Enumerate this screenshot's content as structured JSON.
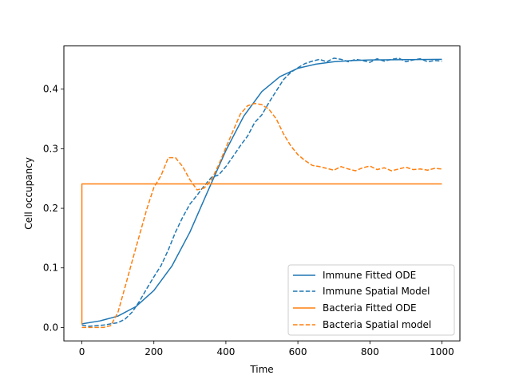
{
  "chart_data": {
    "type": "line",
    "xlabel": "Time",
    "ylabel": "Cell occupancy",
    "xlim": [
      -50,
      1050
    ],
    "ylim": [
      -0.0225,
      0.4725
    ],
    "xticks": [
      0,
      200,
      400,
      600,
      800,
      1000
    ],
    "yticks": [
      0.0,
      0.1,
      0.2,
      0.3,
      0.4
    ],
    "xtick_labels": [
      "0",
      "200",
      "400",
      "600",
      "800",
      "1000"
    ],
    "ytick_labels": [
      "0.0",
      "0.1",
      "0.2",
      "0.3",
      "0.4"
    ],
    "grid": false,
    "legend_position": "lower-right",
    "series": [
      {
        "name": "Immune Fitted ODE",
        "color": "#1f77b4",
        "style": "solid",
        "x": [
          0,
          50,
          100,
          150,
          200,
          250,
          300,
          350,
          400,
          450,
          500,
          550,
          600,
          650,
          700,
          750,
          800,
          900,
          1000
        ],
        "y": [
          0.006,
          0.011,
          0.019,
          0.035,
          0.062,
          0.103,
          0.16,
          0.229,
          0.297,
          0.355,
          0.396,
          0.421,
          0.435,
          0.442,
          0.446,
          0.448,
          0.449,
          0.4495,
          0.45
        ]
      },
      {
        "name": "Immune Spatial Model",
        "color": "#1f77b4",
        "style": "dashed",
        "x": [
          0,
          20,
          40,
          60,
          80,
          100,
          120,
          140,
          160,
          180,
          200,
          220,
          240,
          260,
          280,
          300,
          320,
          340,
          360,
          380,
          400,
          420,
          440,
          460,
          480,
          500,
          520,
          540,
          560,
          580,
          600,
          620,
          640,
          660,
          680,
          700,
          720,
          740,
          760,
          780,
          800,
          820,
          840,
          860,
          880,
          900,
          920,
          940,
          960,
          980,
          1000
        ],
        "y": [
          0.004,
          0.002,
          0.003,
          0.004,
          0.006,
          0.008,
          0.014,
          0.026,
          0.044,
          0.065,
          0.085,
          0.104,
          0.13,
          0.16,
          0.185,
          0.207,
          0.222,
          0.238,
          0.252,
          0.256,
          0.27,
          0.287,
          0.305,
          0.321,
          0.344,
          0.357,
          0.378,
          0.397,
          0.416,
          0.428,
          0.436,
          0.443,
          0.447,
          0.45,
          0.446,
          0.452,
          0.45,
          0.446,
          0.45,
          0.448,
          0.445,
          0.451,
          0.447,
          0.45,
          0.452,
          0.446,
          0.449,
          0.451,
          0.446,
          0.448,
          0.447
        ]
      },
      {
        "name": "Bacteria Fitted ODE",
        "color": "#ff7f0e",
        "style": "solid",
        "x": [
          0,
          0,
          1000
        ],
        "y": [
          0.005,
          0.241,
          0.241
        ]
      },
      {
        "name": "Bacteria Spatial model",
        "color": "#ff7f0e",
        "style": "dashed",
        "x": [
          0,
          20,
          40,
          60,
          80,
          100,
          120,
          140,
          160,
          180,
          200,
          220,
          240,
          260,
          280,
          300,
          320,
          340,
          360,
          380,
          400,
          420,
          440,
          460,
          480,
          500,
          520,
          540,
          560,
          580,
          600,
          620,
          640,
          660,
          680,
          700,
          720,
          740,
          760,
          780,
          800,
          820,
          840,
          860,
          880,
          900,
          920,
          940,
          960,
          980,
          1000
        ],
        "y": [
          0.0,
          0.0,
          0.0,
          0.0,
          0.003,
          0.025,
          0.068,
          0.112,
          0.155,
          0.198,
          0.235,
          0.255,
          0.285,
          0.285,
          0.27,
          0.248,
          0.231,
          0.234,
          0.248,
          0.273,
          0.302,
          0.33,
          0.358,
          0.372,
          0.376,
          0.374,
          0.366,
          0.35,
          0.325,
          0.305,
          0.29,
          0.28,
          0.272,
          0.27,
          0.267,
          0.264,
          0.27,
          0.266,
          0.263,
          0.268,
          0.271,
          0.265,
          0.268,
          0.263,
          0.266,
          0.269,
          0.265,
          0.266,
          0.264,
          0.267,
          0.266
        ]
      }
    ]
  }
}
